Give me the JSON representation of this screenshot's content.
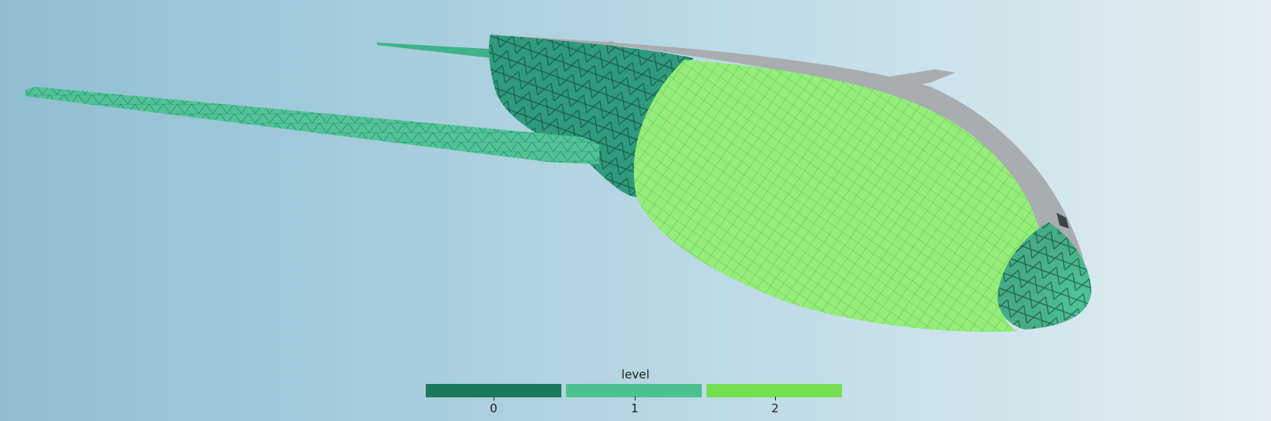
{
  "legend": {
    "title": "level",
    "entries": [
      {
        "label": "0",
        "color": "#187a5b"
      },
      {
        "label": "1",
        "color": "#4bc28f"
      },
      {
        "label": "2",
        "color": "#74e04f"
      }
    ]
  },
  "colors": {
    "level0_mesh": "#2f9b7c",
    "level1_mesh": "#4fc397",
    "level2_mesh": "#93ee7a",
    "untagged_surface": "#a8adb0"
  }
}
